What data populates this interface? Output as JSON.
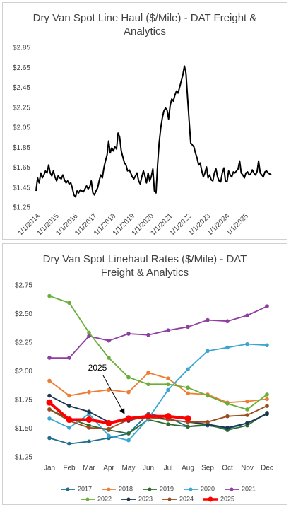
{
  "chart_data": [
    {
      "type": "line",
      "title": "Dry Van Spot Line Haul ($/Mile) - DAT Freight & Analytics",
      "color": "#000000",
      "x": [
        "1/1/2014",
        "2/1/2014",
        "3/1/2014",
        "4/1/2014",
        "5/1/2014",
        "6/1/2014",
        "7/1/2014",
        "8/1/2014",
        "9/1/2014",
        "10/1/2014",
        "11/1/2014",
        "12/1/2014",
        "1/1/2015",
        "2/1/2015",
        "3/1/2015",
        "4/1/2015",
        "5/1/2015",
        "6/1/2015",
        "7/1/2015",
        "8/1/2015",
        "9/1/2015",
        "10/1/2015",
        "11/1/2015",
        "12/1/2015",
        "1/1/2016",
        "2/1/2016",
        "3/1/2016",
        "4/1/2016",
        "5/1/2016",
        "6/1/2016",
        "7/1/2016",
        "8/1/2016",
        "9/1/2016",
        "10/1/2016",
        "11/1/2016",
        "12/1/2016",
        "1/1/2017",
        "2/1/2017",
        "3/1/2017",
        "4/1/2017",
        "5/1/2017",
        "6/1/2017",
        "7/1/2017",
        "8/1/2017",
        "9/1/2017",
        "10/1/2017",
        "11/1/2017",
        "12/1/2017",
        "1/1/2018",
        "2/1/2018",
        "3/1/2018",
        "4/1/2018",
        "5/1/2018",
        "6/1/2018",
        "7/1/2018",
        "8/1/2018",
        "9/1/2018",
        "10/1/2018",
        "11/1/2018",
        "12/1/2018",
        "1/1/2019",
        "2/1/2019",
        "3/1/2019",
        "4/1/2019",
        "5/1/2019",
        "6/1/2019",
        "7/1/2019",
        "8/1/2019",
        "9/1/2019",
        "10/1/2019",
        "11/1/2019",
        "12/1/2019",
        "1/1/2020",
        "2/1/2020",
        "3/1/2020",
        "4/1/2020",
        "5/1/2020",
        "6/1/2020",
        "7/1/2020",
        "8/1/2020",
        "9/1/2020",
        "10/1/2020",
        "11/1/2020",
        "12/1/2020",
        "1/1/2021",
        "2/1/2021",
        "3/1/2021",
        "4/1/2021",
        "5/1/2021",
        "6/1/2021",
        "7/1/2021",
        "8/1/2021",
        "9/1/2021",
        "10/1/2021",
        "11/1/2021",
        "12/1/2021",
        "1/1/2022",
        "2/1/2022",
        "3/1/2022",
        "4/1/2022",
        "5/1/2022",
        "6/1/2022",
        "7/1/2022",
        "8/1/2022",
        "9/1/2022",
        "10/1/2022",
        "11/1/2022",
        "12/1/2022",
        "1/1/2023",
        "2/1/2023",
        "3/1/2023",
        "4/1/2023",
        "5/1/2023",
        "6/1/2023",
        "7/1/2023",
        "8/1/2023",
        "9/1/2023",
        "10/1/2023",
        "11/1/2023",
        "12/1/2023",
        "1/1/2024",
        "2/1/2024",
        "3/1/2024",
        "4/1/2024",
        "5/1/2024",
        "6/1/2024",
        "7/1/2024",
        "8/1/2024",
        "9/1/2024",
        "10/1/2024",
        "11/1/2024",
        "12/1/2024",
        "1/1/2025",
        "2/1/2025",
        "3/1/2025",
        "4/1/2025",
        "5/1/2025",
        "6/1/2025",
        "7/1/2025",
        "8/1/2025",
        "9/1/2025",
        "10/1/2025",
        "11/1/2025",
        "12/1/2025",
        "1/1/2026",
        "2/1/2026",
        "3/1/2026",
        "4/1/2026",
        "5/1/2026",
        "6/1/2026"
      ],
      "values": [
        1.42,
        1.55,
        1.5,
        1.6,
        1.55,
        1.58,
        1.62,
        1.6,
        1.68,
        1.6,
        1.57,
        1.62,
        1.56,
        1.52,
        1.57,
        1.55,
        1.54,
        1.58,
        1.53,
        1.5,
        1.52,
        1.49,
        1.5,
        1.45,
        1.38,
        1.36,
        1.42,
        1.4,
        1.43,
        1.42,
        1.41,
        1.44,
        1.47,
        1.44,
        1.46,
        1.52,
        1.4,
        1.38,
        1.42,
        1.45,
        1.52,
        1.58,
        1.55,
        1.65,
        1.72,
        1.78,
        1.92,
        1.8,
        1.85,
        1.82,
        1.86,
        1.84,
        2.0,
        1.96,
        1.82,
        1.76,
        1.7,
        1.68,
        1.62,
        1.63,
        1.6,
        1.56,
        1.54,
        1.57,
        1.6,
        1.52,
        1.49,
        1.56,
        1.62,
        1.57,
        1.5,
        1.6,
        1.52,
        1.56,
        1.64,
        1.42,
        1.4,
        1.68,
        1.9,
        2.05,
        2.15,
        2.22,
        2.25,
        2.23,
        2.14,
        2.28,
        2.34,
        2.32,
        2.38,
        2.42,
        2.4,
        2.46,
        2.52,
        2.58,
        2.67,
        2.6,
        2.35,
        2.12,
        1.9,
        1.88,
        1.86,
        1.8,
        1.75,
        1.68,
        1.7,
        1.62,
        1.56,
        1.6,
        1.66,
        1.55,
        1.58,
        1.53,
        1.52,
        1.6,
        1.64,
        1.56,
        1.52,
        1.51,
        1.6,
        1.65,
        1.52,
        1.51,
        1.62,
        1.58,
        1.56,
        1.61,
        1.6,
        1.62,
        1.64,
        1.72,
        1.6,
        1.58,
        1.55,
        1.6,
        1.61,
        1.58,
        1.59,
        1.63,
        1.6,
        1.58,
        1.61,
        1.72,
        1.6,
        1.58,
        1.56,
        1.61,
        1.62,
        1.6,
        1.59,
        1.58
      ],
      "xticks": [
        "1/1/2014",
        "1/1/2015",
        "1/1/2016",
        "1/1/2017",
        "1/1/2018",
        "1/1/2019",
        "1/1/2020",
        "1/1/2021",
        "1/1/2022",
        "1/1/2023",
        "1/1/2024",
        "1/1/2025"
      ],
      "ylim": [
        1.25,
        2.85
      ],
      "yticks": [
        {
          "value": 1.25,
          "label": "$1.25"
        },
        {
          "value": 1.45,
          "label": "$1.45"
        },
        {
          "value": 1.65,
          "label": "$1.65"
        },
        {
          "value": 1.85,
          "label": "$1.85"
        },
        {
          "value": 2.05,
          "label": "$2.05"
        },
        {
          "value": 2.25,
          "label": "$2.25"
        },
        {
          "value": 2.45,
          "label": "$2.45"
        },
        {
          "value": 2.65,
          "label": "$2.65"
        },
        {
          "value": 2.85,
          "label": "$2.85"
        }
      ],
      "grid": false
    },
    {
      "type": "line",
      "title": "Dry Van Spot Linehaul Rates ($/Mile) - DAT Freight & Analytics",
      "categories": [
        "Jan",
        "Feb",
        "Mar",
        "Apr",
        "May",
        "Jun",
        "Jul",
        "Aug",
        "Sep",
        "Oct",
        "Nov",
        "Dec"
      ],
      "series": [
        {
          "name": "2017",
          "color": "#1f6e8c",
          "values": [
            1.42,
            1.37,
            1.39,
            1.42,
            1.46,
            1.63,
            1.6,
            1.52,
            1.53,
            1.5,
            1.55,
            1.63
          ]
        },
        {
          "name": "2018",
          "color": "#ed7d31",
          "values": [
            1.92,
            1.79,
            1.82,
            1.84,
            1.82,
            1.99,
            1.94,
            1.81,
            1.8,
            1.73,
            1.74,
            1.76
          ]
        },
        {
          "name": "2019",
          "color": "#2e6b30",
          "values": [
            1.67,
            1.59,
            1.53,
            1.49,
            1.46,
            1.58,
            1.54,
            1.52,
            1.54,
            1.49,
            1.53,
            1.64
          ]
        },
        {
          "name": "2020",
          "color": "#3aa6d0",
          "values": [
            1.59,
            1.51,
            1.63,
            1.44,
            1.4,
            1.59,
            1.84,
            2.02,
            2.18,
            2.21,
            2.24,
            2.23
          ]
        },
        {
          "name": "2021",
          "color": "#8e3ea0",
          "values": [
            2.12,
            2.12,
            2.31,
            2.27,
            2.33,
            2.32,
            2.36,
            2.39,
            2.45,
            2.44,
            2.49,
            2.57
          ]
        },
        {
          "name": "2022",
          "color": "#6aae3a",
          "values": [
            2.66,
            2.6,
            2.34,
            2.12,
            1.95,
            1.89,
            1.89,
            1.86,
            1.79,
            1.72,
            1.67,
            1.8
          ]
        },
        {
          "name": "2023",
          "color": "#1c3553",
          "values": [
            1.79,
            1.7,
            1.65,
            1.56,
            1.57,
            1.62,
            1.58,
            1.56,
            1.54,
            1.51,
            1.55,
            1.63
          ]
        },
        {
          "name": "2024",
          "color": "#9b4a1e",
          "values": [
            1.67,
            1.57,
            1.51,
            1.5,
            1.58,
            1.6,
            1.58,
            1.56,
            1.56,
            1.61,
            1.62,
            1.7
          ]
        },
        {
          "name": "2025",
          "color": "#ff0000",
          "values": [
            1.73,
            1.58,
            1.58,
            1.55,
            1.59,
            1.61,
            1.61,
            1.59,
            null,
            null,
            null,
            null
          ]
        }
      ],
      "ylim": [
        1.25,
        2.75
      ],
      "yticks": [
        {
          "value": 1.25,
          "label": "$1.25"
        },
        {
          "value": 1.5,
          "label": "$1.50"
        },
        {
          "value": 1.75,
          "label": "$1.75"
        },
        {
          "value": 2.0,
          "label": "$2.00"
        },
        {
          "value": 2.25,
          "label": "$2.25"
        },
        {
          "value": 2.5,
          "label": "$2.50"
        },
        {
          "value": 2.75,
          "label": "$2.75"
        }
      ],
      "annotations": [
        {
          "text": "2025"
        }
      ],
      "grid": false
    }
  ]
}
